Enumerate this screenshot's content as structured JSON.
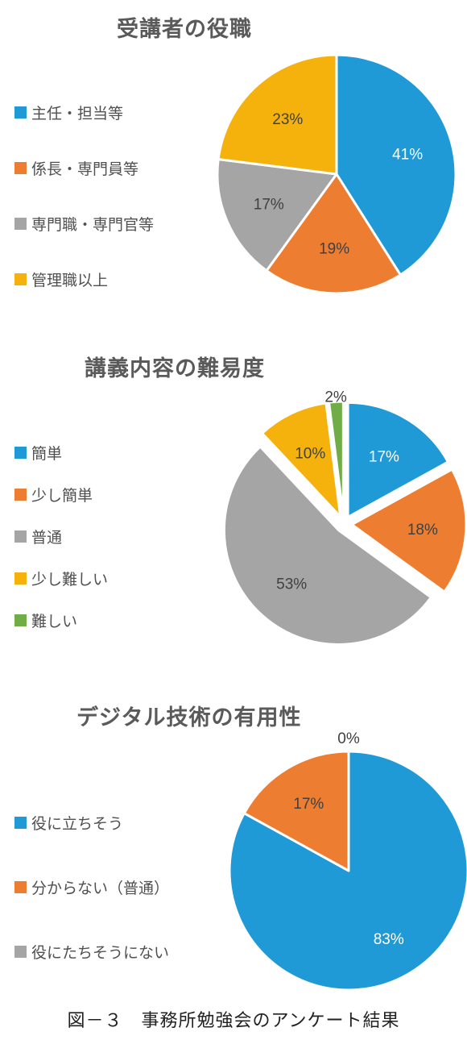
{
  "caption": "図－３　事務所勉強会のアンケート結果",
  "chart_data": [
    {
      "type": "pie",
      "title": "受講者の役職",
      "categories": [
        "主任・担当等",
        "係長・専門員等",
        "専門職・専門官等",
        "管理職以上"
      ],
      "values": [
        41,
        19,
        17,
        23
      ],
      "labels": [
        "41%",
        "19%",
        "17%",
        "23%"
      ],
      "colors": [
        "#1f9ad6",
        "#ed7d31",
        "#a5a5a5",
        "#f5b20d"
      ],
      "legend": "left"
    },
    {
      "type": "pie",
      "title": "講義内容の難易度",
      "categories": [
        "簡単",
        "少し簡単",
        "普通",
        "少し難しい",
        "難しい"
      ],
      "values": [
        17,
        18,
        53,
        10,
        2
      ],
      "labels": [
        "17%",
        "18%",
        "53%",
        "10%",
        "2%"
      ],
      "colors": [
        "#1f9ad6",
        "#ed7d31",
        "#a5a5a5",
        "#f5b20d",
        "#70ad47"
      ],
      "exploded": true,
      "legend": "left"
    },
    {
      "type": "pie",
      "title": "デジタル技術の有用性",
      "categories": [
        "役に立ちそう",
        "分からない（普通）",
        "役にたちそうにない"
      ],
      "values": [
        83,
        17,
        0
      ],
      "labels": [
        "83%",
        "17%",
        "0%"
      ],
      "colors": [
        "#1f9ad6",
        "#ed7d31",
        "#a5a5a5"
      ],
      "legend": "left"
    }
  ]
}
